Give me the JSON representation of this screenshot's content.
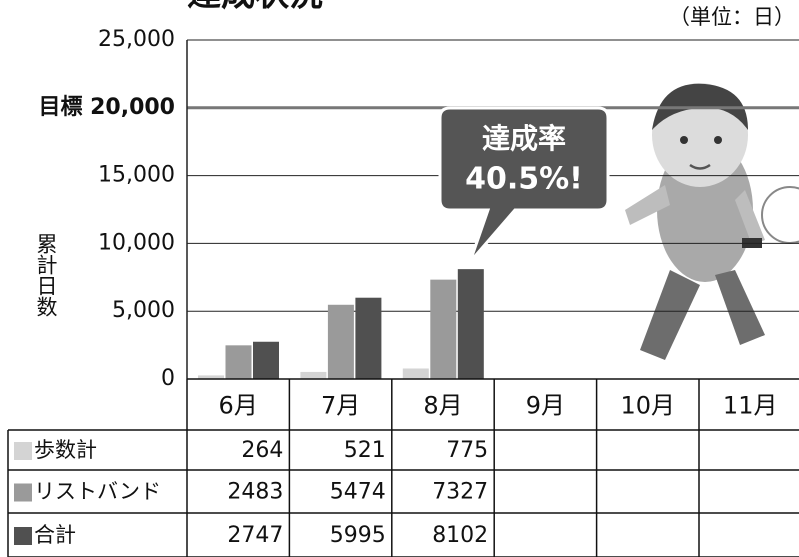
{
  "chart_data": {
    "type": "bar",
    "title": "達成状況",
    "unit_label": "（単位：日）",
    "y_label": "累計日数",
    "categories": [
      "6月",
      "7月",
      "8月",
      "9月",
      "10月",
      "11月"
    ],
    "series": [
      {
        "name": "歩数計",
        "color": "#d4d4d4",
        "values": [
          264,
          521,
          775,
          null,
          null,
          null
        ]
      },
      {
        "name": "リストバンド",
        "color": "#9a9a9a",
        "values": [
          2483,
          5474,
          7327,
          null,
          null,
          null
        ]
      },
      {
        "name": "合計",
        "color": "#505050",
        "values": [
          2747,
          5995,
          8102,
          null,
          null,
          null
        ]
      }
    ],
    "ylim": [
      0,
      25000
    ],
    "yticks": [
      0,
      {
        "value": 5000,
        "label": "5,000"
      },
      {
        "value": 10000,
        "label": "10,000"
      },
      {
        "value": 15000,
        "label": "15,000"
      },
      {
        "value": 20000,
        "label": "目標 20,000"
      },
      {
        "value": 25000,
        "label": "25,000"
      }
    ],
    "target_line": 20000,
    "grid": true,
    "annotation": [
      "達成率",
      "40.5%!"
    ]
  }
}
